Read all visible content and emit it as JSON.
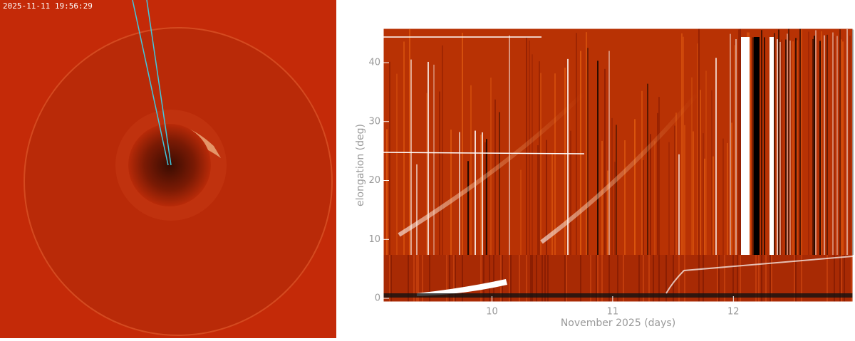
{
  "image": {
    "timestamp": "2025-11-11  19:56:29"
  },
  "chart_data": {
    "type": "jmap",
    "xlabel": "November 2025 (days)",
    "ylabel": "elongation (deg)",
    "xlim": [
      9.1,
      12.99
    ],
    "xticks": [
      10,
      11,
      12
    ],
    "ylim": [
      -0.6,
      45.8
    ],
    "yticks": [
      0,
      10,
      20,
      30,
      40
    ]
  }
}
